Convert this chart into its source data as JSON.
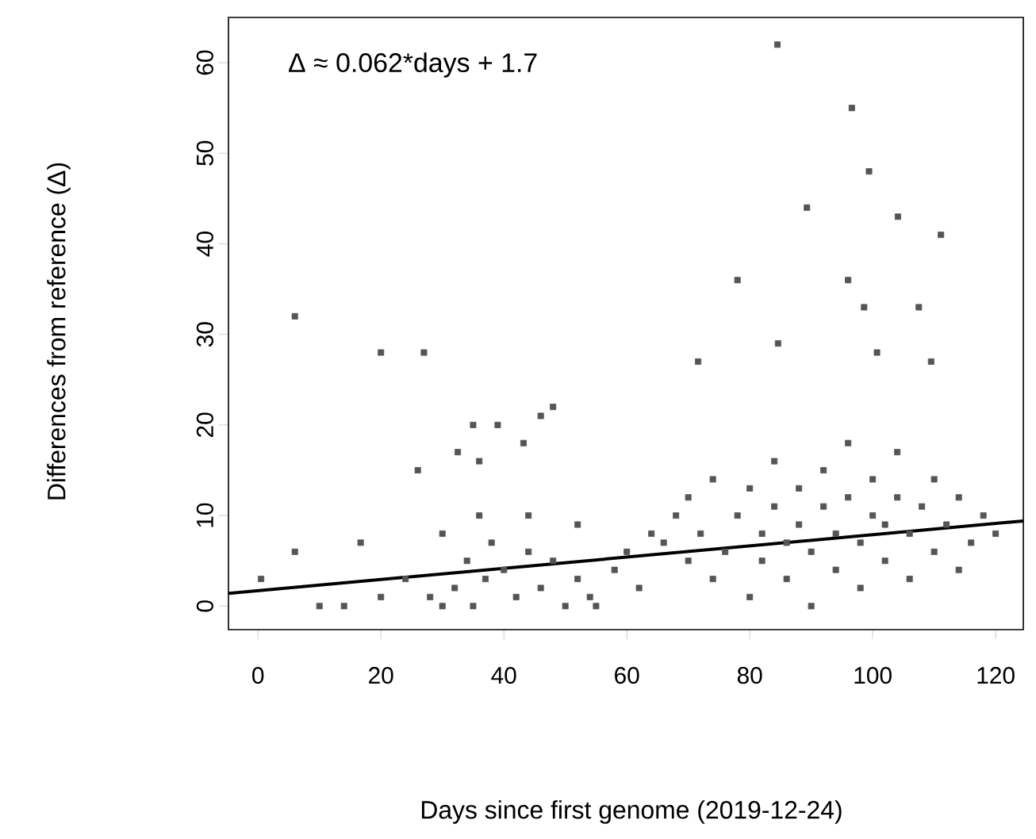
{
  "chart_data": {
    "type": "scatter",
    "xlabel": "Days since first genome (2019-12-24)",
    "ylabel": "Differences from reference (Δ)",
    "annotations": [
      "Δ ≈ 0.062*days + 1.7"
    ],
    "xlim": [
      -4.8,
      124.5
    ],
    "ylim": [
      -2.6,
      65
    ],
    "xticks": [
      0,
      20,
      40,
      60,
      80,
      100,
      120
    ],
    "yticks": [
      0,
      10,
      20,
      30,
      40,
      50,
      60
    ],
    "grid": false,
    "series": [
      {
        "marker": "square",
        "color": "#555555",
        "x": [
          84.5,
          96.6,
          99.4,
          89.3,
          104.1,
          111.1,
          78,
          96,
          98.6,
          6,
          20,
          27,
          84.6,
          100.7,
          109.5,
          71.6,
          107.5,
          35,
          39,
          48,
          46,
          32.5,
          36,
          43.2,
          26,
          16.7,
          6,
          0.5,
          28,
          30,
          32,
          34,
          35,
          37,
          38,
          40,
          42,
          44,
          46,
          48,
          50,
          52,
          54,
          55,
          58,
          60,
          62,
          64,
          10,
          14,
          20,
          24,
          30,
          36,
          44,
          52,
          66,
          68,
          70,
          70,
          72,
          74,
          74,
          76,
          78,
          80,
          80,
          82,
          82,
          84,
          84,
          86,
          86,
          88,
          88,
          90,
          90,
          92,
          92,
          94,
          94,
          96,
          96,
          98,
          98,
          100,
          100,
          102,
          102,
          104,
          104,
          106,
          106,
          108,
          110,
          110,
          112,
          114,
          114,
          116,
          118,
          120
        ],
        "values": [
          62,
          55,
          48,
          44,
          43,
          41,
          36,
          36,
          33,
          32,
          28,
          28,
          29,
          28,
          27,
          27,
          33,
          20,
          20,
          22,
          21,
          17,
          16,
          18,
          15,
          7,
          6,
          3,
          1,
          0,
          2,
          5,
          0,
          3,
          7,
          4,
          1,
          6,
          2,
          5,
          0,
          3,
          1,
          0,
          4,
          6,
          2,
          8,
          0,
          0,
          1,
          3,
          8,
          10,
          10,
          9,
          7,
          10,
          5,
          12,
          8,
          3,
          14,
          6,
          10,
          1,
          13,
          5,
          8,
          11,
          16,
          3,
          7,
          9,
          13,
          0,
          6,
          11,
          15,
          4,
          8,
          12,
          18,
          2,
          7,
          10,
          14,
          5,
          9,
          12,
          17,
          3,
          8,
          11,
          6,
          14,
          9,
          4,
          12,
          7,
          10,
          8
        ]
      },
      {
        "type": "line",
        "color": "#000000",
        "x": [
          -4.8,
          124.5
        ],
        "values": [
          1.4,
          9.4
        ]
      }
    ]
  }
}
